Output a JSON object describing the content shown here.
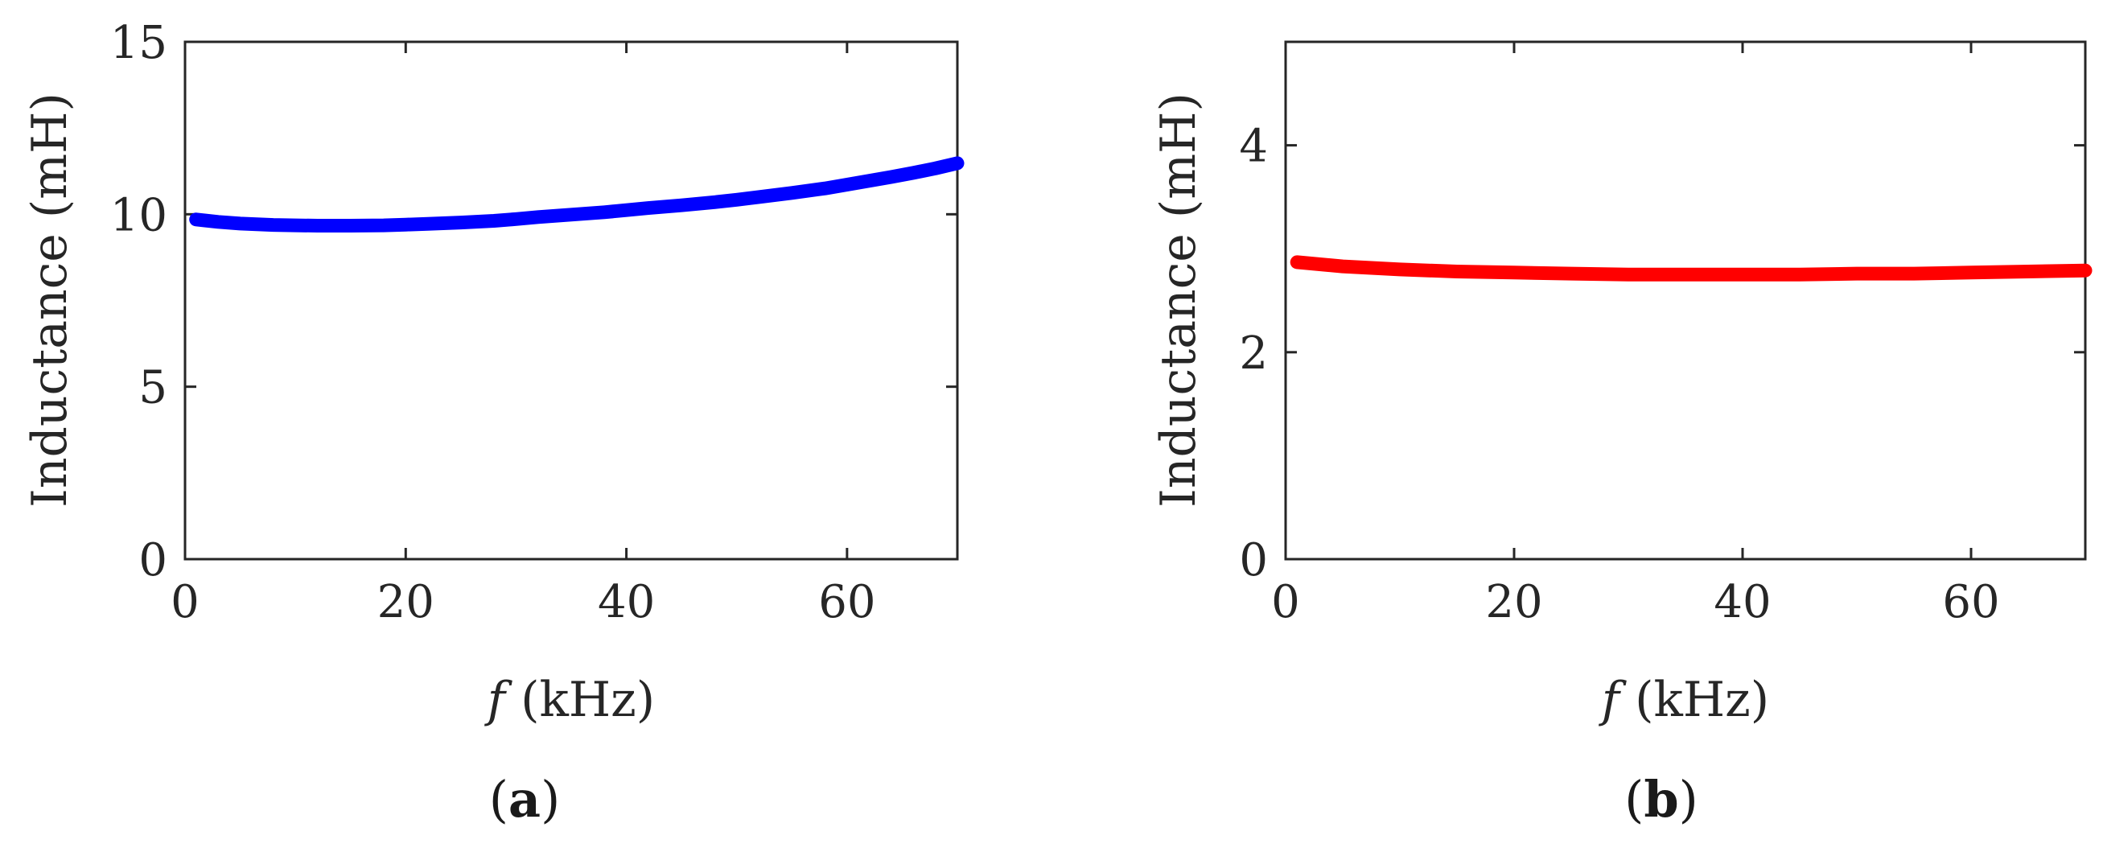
{
  "chart_data": [
    {
      "type": "line",
      "panel_label": "a",
      "xlabel_var": "f",
      "xlabel_unit": "(kHz)",
      "ylabel": "Inductance  (mH)",
      "xlim": [
        0,
        70
      ],
      "ylim": [
        0,
        15
      ],
      "xticks": [
        0,
        20,
        40,
        60
      ],
      "yticks": [
        0,
        5,
        10,
        15
      ],
      "grid": false,
      "series": [
        {
          "color": "#0000ff",
          "x": [
            1,
            3,
            5,
            8,
            10,
            12,
            15,
            18,
            20,
            22,
            25,
            28,
            30,
            32,
            35,
            38,
            40,
            42,
            45,
            48,
            50,
            52,
            55,
            58,
            60,
            62,
            64,
            66,
            68,
            70
          ],
          "y": [
            9.85,
            9.78,
            9.73,
            9.69,
            9.68,
            9.67,
            9.67,
            9.68,
            9.7,
            9.72,
            9.76,
            9.81,
            9.86,
            9.92,
            9.99,
            10.06,
            10.12,
            10.18,
            10.26,
            10.35,
            10.42,
            10.5,
            10.62,
            10.75,
            10.86,
            10.97,
            11.08,
            11.2,
            11.33,
            11.48
          ]
        }
      ]
    },
    {
      "type": "line",
      "panel_label": "b",
      "xlabel_var": "f",
      "xlabel_unit": "(kHz)",
      "ylabel": "Inductance  (mH)",
      "xlim": [
        0,
        70
      ],
      "ylim": [
        0,
        5
      ],
      "xticks": [
        0,
        20,
        40,
        60
      ],
      "yticks": [
        0,
        2,
        4
      ],
      "grid": false,
      "series": [
        {
          "color": "#ff0000",
          "x": [
            1,
            5,
            10,
            15,
            20,
            25,
            30,
            35,
            40,
            45,
            50,
            55,
            60,
            65,
            70
          ],
          "y": [
            2.87,
            2.83,
            2.8,
            2.78,
            2.77,
            2.76,
            2.75,
            2.75,
            2.75,
            2.75,
            2.76,
            2.76,
            2.77,
            2.78,
            2.79
          ]
        }
      ]
    }
  ]
}
